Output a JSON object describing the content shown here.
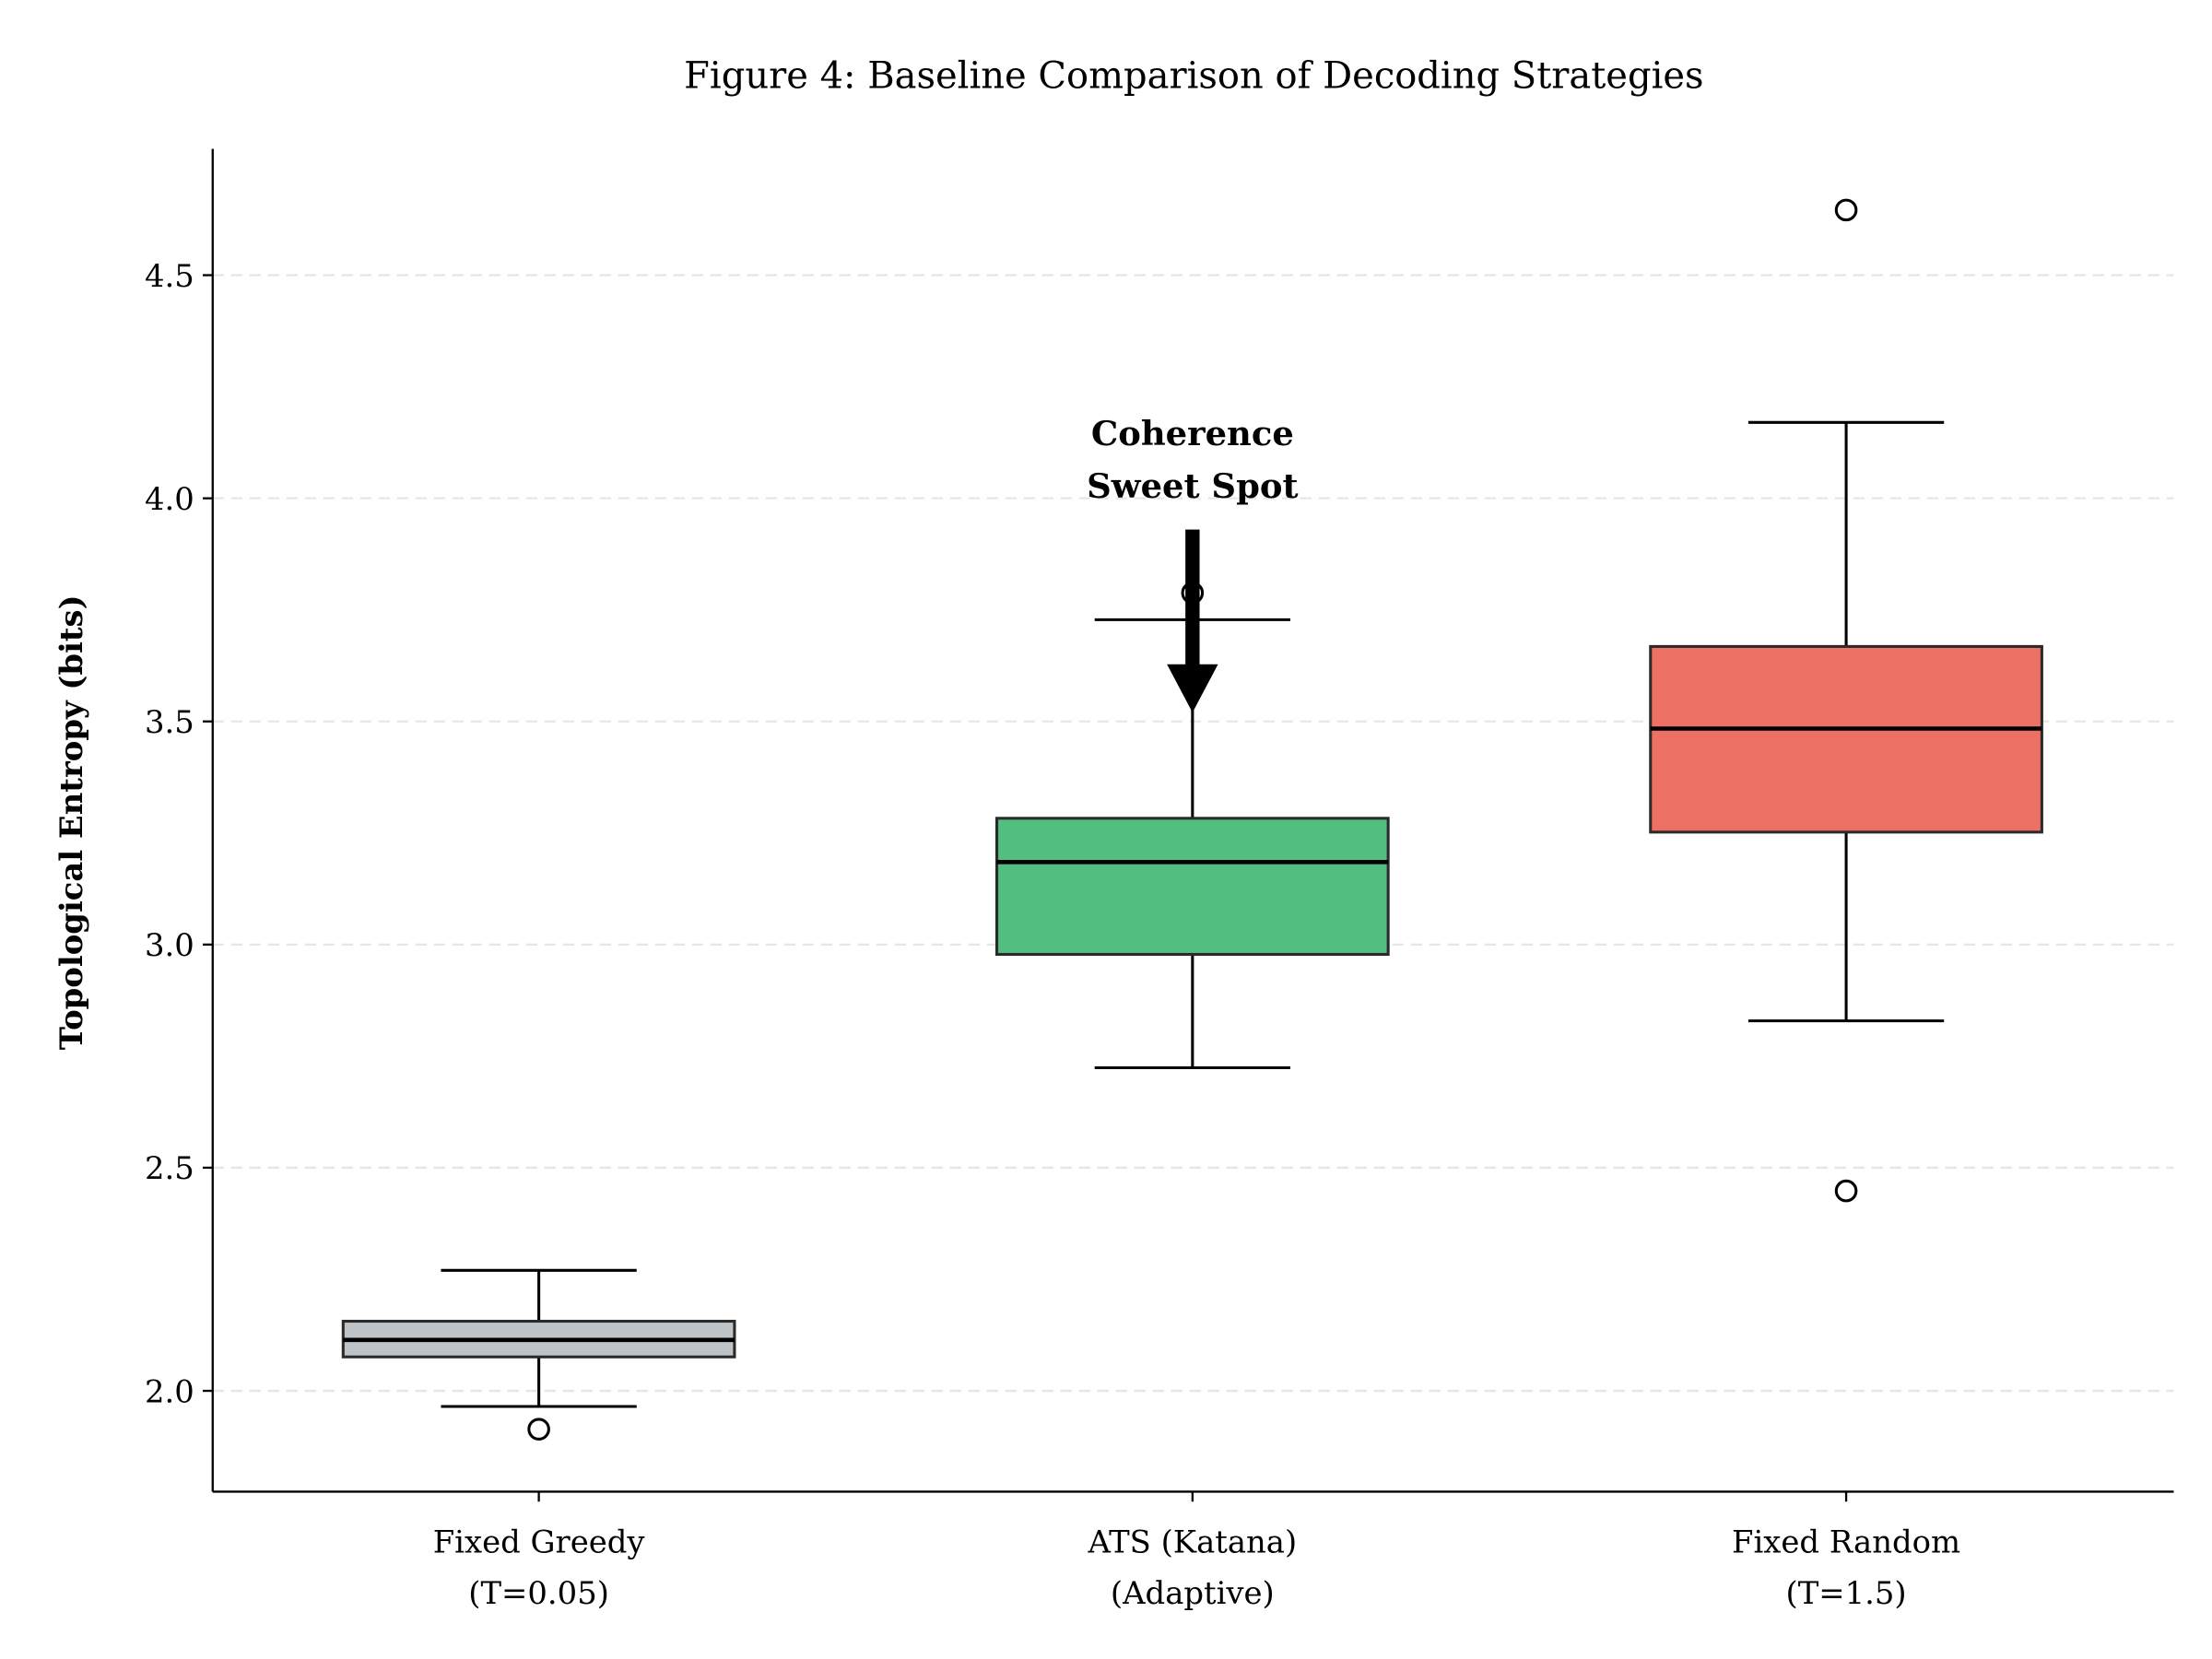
{
  "chart_data": {
    "type": "box",
    "title": "Figure 4: Baseline Comparison of Decoding Strategies",
    "xlabel": "",
    "ylabel": "Topological Entropy (bits)",
    "ylim": [
      1.774,
      4.783
    ],
    "yticks": [
      2.0,
      2.5,
      3.0,
      3.5,
      4.0,
      4.5
    ],
    "ytick_labels": [
      "2.0",
      "2.5",
      "3.0",
      "3.5",
      "4.0",
      "4.5"
    ],
    "grid": "y-dashed",
    "categories": [
      {
        "line1": "Fixed Greedy",
        "line2": "(T=0.05)"
      },
      {
        "line1": "ATS (Katana)",
        "line2": "(Adaptive)"
      },
      {
        "line1": "Fixed Random",
        "line2": "(T=1.5)"
      }
    ],
    "boxes": [
      {
        "whisker_low": 1.965,
        "q1": 2.076,
        "median": 2.114,
        "q3": 2.156,
        "whisker_high": 2.27,
        "outliers": [
          1.914
        ],
        "color": "#bdc3c7"
      },
      {
        "whisker_low": 2.724,
        "q1": 2.978,
        "median": 3.185,
        "q3": 3.283,
        "whisker_high": 3.728,
        "outliers": [
          3.788
        ],
        "color": "#52be80"
      },
      {
        "whisker_low": 2.829,
        "q1": 3.252,
        "median": 3.484,
        "q3": 3.668,
        "whisker_high": 4.17,
        "outliers": [
          4.646,
          2.448
        ],
        "color": "#ec7063"
      }
    ],
    "annotation": {
      "line1": "Coherence",
      "line2": "Sweet Spot",
      "category_index": 1,
      "arrow_from": 3.93,
      "arrow_to": 3.52
    }
  }
}
